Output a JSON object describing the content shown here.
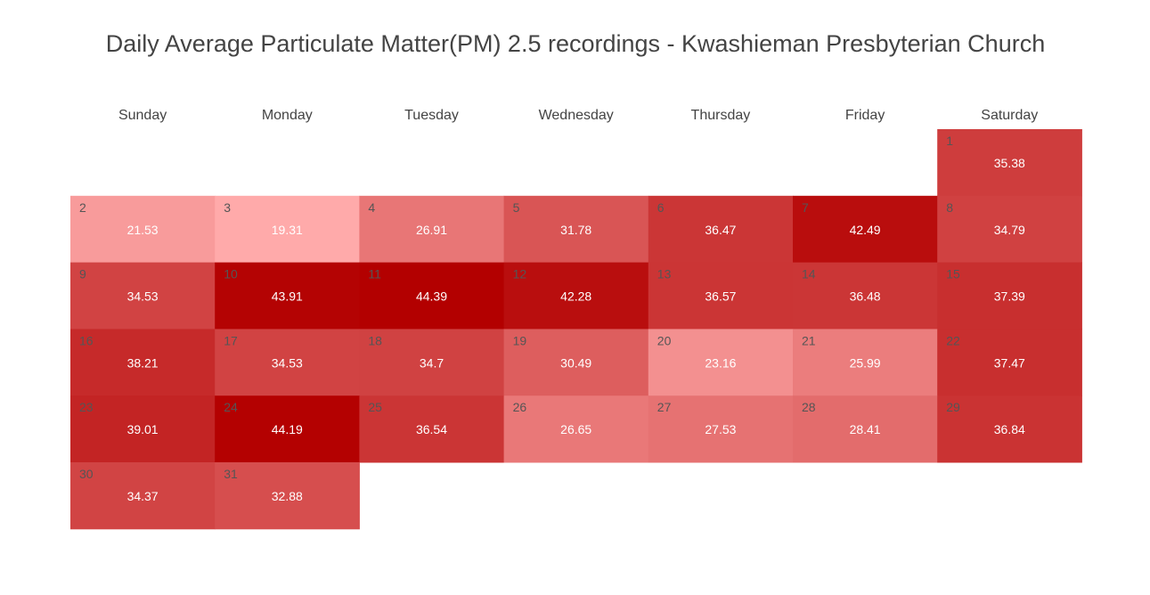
{
  "chart_data": {
    "type": "heatmap",
    "title": "Daily Average Particulate Matter(PM) 2.5 recordings - Kwashieman Presbyterian Church",
    "weekdays": [
      "Sunday",
      "Monday",
      "Tuesday",
      "Wednesday",
      "Thursday",
      "Friday",
      "Saturday"
    ],
    "first_day_weekday_index": 6,
    "color_scale": {
      "low": "#ffaaaa",
      "high": "#b30000"
    },
    "days": [
      {
        "day": 1,
        "value": 35.38
      },
      {
        "day": 2,
        "value": 21.53
      },
      {
        "day": 3,
        "value": 19.31
      },
      {
        "day": 4,
        "value": 26.91
      },
      {
        "day": 5,
        "value": 31.78
      },
      {
        "day": 6,
        "value": 36.47
      },
      {
        "day": 7,
        "value": 42.49
      },
      {
        "day": 8,
        "value": 34.79
      },
      {
        "day": 9,
        "value": 34.53
      },
      {
        "day": 10,
        "value": 43.91
      },
      {
        "day": 11,
        "value": 44.39
      },
      {
        "day": 12,
        "value": 42.28
      },
      {
        "day": 13,
        "value": 36.57
      },
      {
        "day": 14,
        "value": 36.48
      },
      {
        "day": 15,
        "value": 37.39
      },
      {
        "day": 16,
        "value": 38.21
      },
      {
        "day": 17,
        "value": 34.53
      },
      {
        "day": 18,
        "value": 34.7
      },
      {
        "day": 19,
        "value": 30.49
      },
      {
        "day": 20,
        "value": 23.16
      },
      {
        "day": 21,
        "value": 25.99
      },
      {
        "day": 22,
        "value": 37.47
      },
      {
        "day": 23,
        "value": 39.01
      },
      {
        "day": 24,
        "value": 44.19
      },
      {
        "day": 25,
        "value": 36.54
      },
      {
        "day": 26,
        "value": 26.65
      },
      {
        "day": 27,
        "value": 27.53
      },
      {
        "day": 28,
        "value": 28.41
      },
      {
        "day": 29,
        "value": 36.84
      },
      {
        "day": 30,
        "value": 34.37
      },
      {
        "day": 31,
        "value": 32.88
      }
    ]
  }
}
